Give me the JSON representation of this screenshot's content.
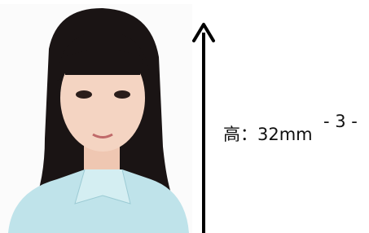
{
  "height_label": "高：32mm",
  "page_number": "- 3 -"
}
